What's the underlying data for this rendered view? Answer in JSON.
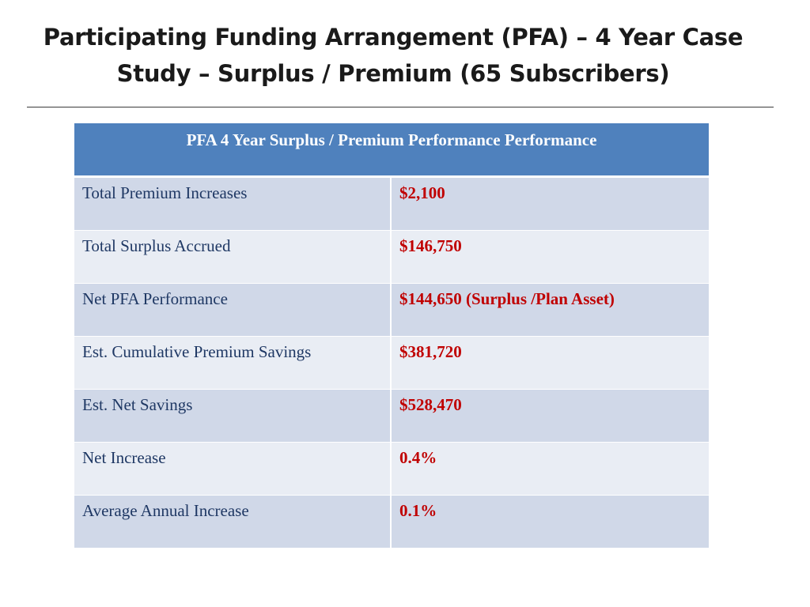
{
  "slide": {
    "title_line1": "Participating Funding Arrangement (PFA) – 4 Year Case",
    "title_line2": "Study – Surplus / Premium (65 Subscribers)"
  },
  "table": {
    "header": "PFA 4 Year Surplus / Premium Performance Performance",
    "rows": [
      {
        "label": "Total Premium Increases",
        "value": "$2,100"
      },
      {
        "label": "Total Surplus Accrued",
        "value": "$146,750"
      },
      {
        "label": "Net PFA Performance",
        "value": "$144,650 (Surplus /Plan Asset)"
      },
      {
        "label": "Est. Cumulative Premium Savings",
        "value": "$381,720"
      },
      {
        "label": "Est. Net Savings",
        "value": "$528,470"
      },
      {
        "label": "Net Increase",
        "value": "0.4%"
      },
      {
        "label": "Average Annual Increase",
        "value": "0.1%"
      }
    ],
    "colors": {
      "header_bg": "#4f81bd",
      "row_band_dark": "#d0d8e8",
      "row_band_light": "#e9edf4",
      "label_text": "#1f3864",
      "value_text": "#c00000"
    }
  }
}
